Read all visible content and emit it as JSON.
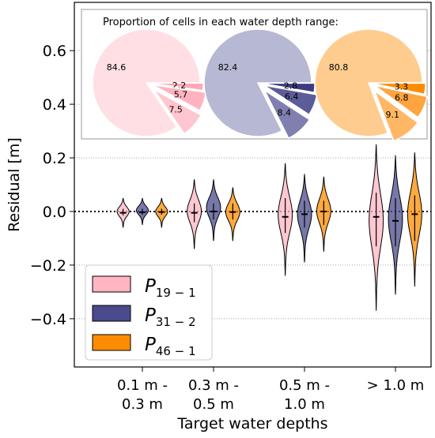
{
  "chart_data": {
    "type": "violin",
    "xlabel": "Target water depths",
    "ylabel": "Residual [m]",
    "ylim": [
      -0.58,
      0.78
    ],
    "yticks": [
      "−0.4",
      "−0.2",
      "0.0",
      "0.2",
      "0.4",
      "0.6"
    ],
    "ytick_values": [
      -0.4,
      -0.2,
      0.0,
      0.2,
      0.4,
      0.6
    ],
    "grid": "horizontal dotted at ±0.2, ±0.4, 0.6; bold dotted zero line",
    "categories": [
      {
        "line1": "0.1 m -",
        "line2": "0.3 m"
      },
      {
        "line1": "0.3 m -",
        "line2": "0.5 m"
      },
      {
        "line1": "0.5 m -",
        "line2": "1.0 m"
      },
      {
        "line1": "> 1.0 m",
        "line2": ""
      }
    ],
    "legend": {
      "placement": "lower-left",
      "entries": [
        {
          "base": "P",
          "sub": "19 − 1",
          "color": "#ffb6c1"
        },
        {
          "base": "P",
          "sub": "31 − 2",
          "color": "#4a4a8c"
        },
        {
          "base": "P",
          "sub": "46 − 1",
          "color": "#ff8c00"
        }
      ]
    },
    "series": [
      {
        "color": "#ffb6c1",
        "violins": [
          {
            "min": -0.06,
            "max": 0.05,
            "median": -0.005,
            "q1": -0.015,
            "q3": 0.01
          },
          {
            "min": -0.14,
            "max": 0.12,
            "median": -0.005,
            "q1": -0.04,
            "q3": 0.03
          },
          {
            "min": -0.24,
            "max": 0.18,
            "median": -0.02,
            "q1": -0.08,
            "q3": 0.05
          },
          {
            "min": -0.37,
            "max": 0.25,
            "median": -0.02,
            "q1": -0.13,
            "q3": 0.07
          }
        ]
      },
      {
        "color": "#4a4a8c",
        "violins": [
          {
            "min": -0.05,
            "max": 0.05,
            "median": -0.003,
            "q1": -0.012,
            "q3": 0.01
          },
          {
            "min": -0.11,
            "max": 0.12,
            "median": 0.0,
            "q1": -0.03,
            "q3": 0.03
          },
          {
            "min": -0.19,
            "max": 0.14,
            "median": -0.01,
            "q1": -0.06,
            "q3": 0.04
          },
          {
            "min": -0.31,
            "max": 0.21,
            "median": -0.035,
            "q1": -0.13,
            "q3": 0.05
          }
        ]
      },
      {
        "color": "#ff8c00",
        "violins": [
          {
            "min": -0.06,
            "max": 0.05,
            "median": -0.002,
            "q1": -0.012,
            "q3": 0.01
          },
          {
            "min": -0.11,
            "max": 0.09,
            "median": -0.002,
            "q1": -0.03,
            "q3": 0.03
          },
          {
            "min": -0.15,
            "max": 0.13,
            "median": 0.0,
            "q1": -0.05,
            "q3": 0.04
          },
          {
            "min": -0.28,
            "max": 0.22,
            "median": -0.01,
            "q1": -0.11,
            "q3": 0.06
          }
        ]
      }
    ],
    "inset": {
      "title": "Proportion of cells in each water depth range:",
      "pies": [
        {
          "slices": [
            84.6,
            7.5,
            5.7,
            2.2
          ],
          "labels": [
            "84.6",
            "7.5",
            "5.7",
            "2.2"
          ],
          "colors": [
            "#ffdfe4",
            "#ffc6cf",
            "#ffb3c0",
            "#ffa8b6"
          ]
        },
        {
          "slices": [
            82.4,
            8.4,
            6.4,
            2.8
          ],
          "labels": [
            "82.4",
            "8.4",
            "6.4",
            "2.8"
          ],
          "colors": [
            "#b7b8d4",
            "#7f80b0",
            "#5b5c98",
            "#3b3c80"
          ]
        },
        {
          "slices": [
            80.8,
            9.1,
            6.8,
            3.3
          ],
          "labels": [
            "80.8",
            "9.1",
            "6.8",
            "3.3"
          ],
          "colors": [
            "#ffcc8f",
            "#ffb766",
            "#ffa43f",
            "#ff8c00"
          ]
        }
      ]
    }
  }
}
